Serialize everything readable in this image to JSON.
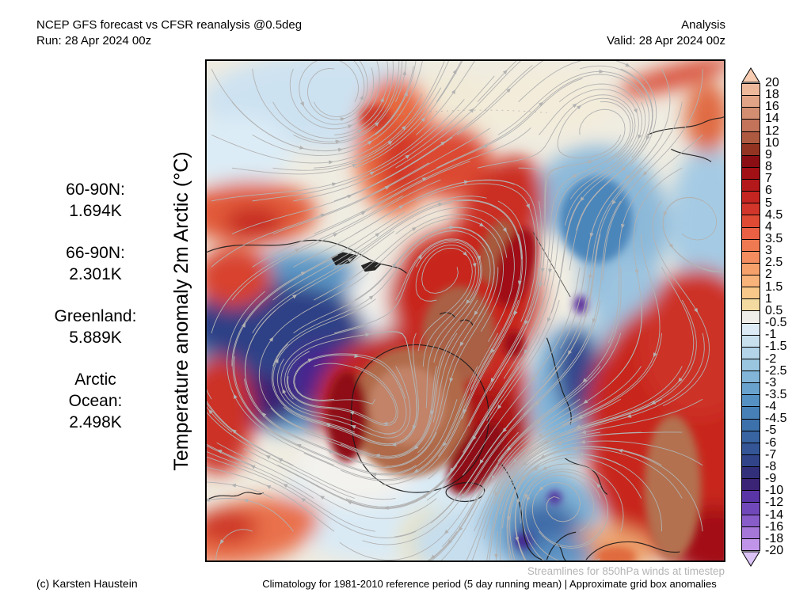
{
  "header": {
    "left": {
      "line1": "NCEP GFS forecast vs CFSR reanalysis @0.5deg",
      "line2": "Run: 28 Apr 2024 00z"
    },
    "right": {
      "line1": "Analysis",
      "line2": "Valid: 28 Apr 2024 00z"
    }
  },
  "axis": {
    "y_label": "Temperature anomaly 2m Arctic (°C)"
  },
  "stats": [
    {
      "line1": "60-90N:",
      "line2": "1.694K"
    },
    {
      "line1": "66-90N:",
      "line2": "2.301K"
    },
    {
      "line1": "Greenland:",
      "line2": "5.889K"
    },
    {
      "line1": "Arctic",
      "line2": "Ocean:",
      "line3": "2.498K"
    }
  ],
  "colorbar": {
    "unit": "°C",
    "arrow_up_color": "#f7ccb0",
    "arrow_down_color": "#dcc3f6",
    "ticks": [
      "20",
      "18",
      "16",
      "14",
      "12",
      "10",
      "9",
      "8",
      "7",
      "6",
      "5",
      "4.5",
      "4",
      "3.5",
      "3",
      "2.5",
      "2",
      "1.5",
      "1",
      "0.5",
      "-0.5",
      "-1",
      "-1.5",
      "-2",
      "-2.5",
      "-3",
      "-3.5",
      "-4",
      "-4.5",
      "-5",
      "-6",
      "-7",
      "-8",
      "-9",
      "-10",
      "-12",
      "-14",
      "-16",
      "-18",
      "-20"
    ],
    "cell_colors": [
      "#eeb89b",
      "#e2a486",
      "#d38e72",
      "#c27359",
      "#ae5a41",
      "#933322",
      "#8a0e13",
      "#a01015",
      "#b3181b",
      "#c42521",
      "#d23529",
      "#df4a34",
      "#e96044",
      "#ef7a52",
      "#f38d60",
      "#f6a06c",
      "#f8b37a",
      "#f7c88a",
      "#f2daa0",
      "#efeeea",
      "#dcebf5",
      "#c9e0ef",
      "#b3d4e9",
      "#9bc6e0",
      "#82b5d7",
      "#69a3cd",
      "#5591c2",
      "#4680b6",
      "#3d71ab",
      "#3864a2",
      "#345697",
      "#314489",
      "#32307b",
      "#3b2376",
      "#5a35a5",
      "#7148b9",
      "#885cc9",
      "#a477d9",
      "#c095e9"
    ]
  },
  "map": {
    "streamline_color": "#b2b2b2"
  },
  "footer": {
    "copyright": "(c) Karsten Haustein",
    "climatology_note": "Climatology for 1981-2010 reference period (5 day running mean) | Approximate grid box anomalies",
    "streamline_note": "Streamlines for 850hPa winds at timestep"
  }
}
